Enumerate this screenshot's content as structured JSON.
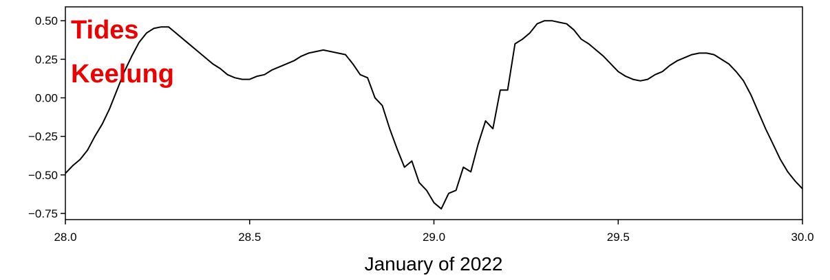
{
  "chart_data": {
    "type": "line",
    "title": "",
    "xlabel": "January of 2022",
    "ylabel": "",
    "xlim": [
      28.0,
      30.0
    ],
    "ylim": [
      -0.79,
      0.59
    ],
    "xticks": [
      28.0,
      28.5,
      29.0,
      29.5,
      30.0
    ],
    "xtick_labels": [
      "28.0",
      "28.5",
      "29.0",
      "29.5",
      "30.0"
    ],
    "yticks": [
      0.5,
      0.25,
      0.0,
      -0.25,
      -0.5,
      -0.75
    ],
    "ytick_labels": [
      "0.50",
      "0.25",
      "0.00",
      "−0.25",
      "−0.50",
      "−0.75"
    ],
    "grid": false,
    "annotation": {
      "lines": [
        "Tides",
        "Keelung"
      ],
      "color": "#ee0000"
    },
    "line_color": "#000000",
    "series": [
      {
        "x": [
          28.0,
          28.02,
          28.04,
          28.06,
          28.08,
          28.1,
          28.12,
          28.14,
          28.16,
          28.18,
          28.2,
          28.22,
          28.24,
          28.26,
          28.28,
          28.3,
          28.32,
          28.34,
          28.36,
          28.38,
          28.4,
          28.42,
          28.44,
          28.46,
          28.48,
          28.5,
          28.52,
          28.54,
          28.56,
          28.58,
          28.6,
          28.62,
          28.64,
          28.66,
          28.68,
          28.7,
          28.72,
          28.74,
          28.76,
          28.78,
          28.8,
          28.82,
          28.84,
          28.86,
          28.88,
          28.9,
          28.92,
          28.94,
          28.96,
          28.98,
          29.0,
          29.02,
          29.04,
          29.06,
          29.08,
          29.1,
          29.12,
          29.14,
          29.16,
          29.18,
          29.2,
          29.22,
          29.24,
          29.26,
          29.28,
          29.3,
          29.32,
          29.34,
          29.36,
          29.38,
          29.4,
          29.42,
          29.44,
          29.46,
          29.48,
          29.5,
          29.52,
          29.54,
          29.56,
          29.58,
          29.6,
          29.62,
          29.64,
          29.66,
          29.68,
          29.7,
          29.72,
          29.74,
          29.76,
          29.78,
          29.8,
          29.82,
          29.84,
          29.86,
          29.88,
          29.9,
          29.92,
          29.94,
          29.96,
          29.98,
          30.0
        ],
        "y": [
          -0.49,
          -0.44,
          -0.4,
          -0.34,
          -0.25,
          -0.17,
          -0.07,
          0.05,
          0.17,
          0.27,
          0.36,
          0.42,
          0.45,
          0.46,
          0.46,
          0.42,
          0.38,
          0.34,
          0.3,
          0.26,
          0.22,
          0.19,
          0.15,
          0.13,
          0.12,
          0.12,
          0.14,
          0.15,
          0.18,
          0.2,
          0.22,
          0.24,
          0.27,
          0.29,
          0.3,
          0.31,
          0.3,
          0.29,
          0.28,
          0.22,
          0.15,
          0.13,
          0.0,
          -0.05,
          -0.2,
          -0.33,
          -0.45,
          -0.41,
          -0.55,
          -0.6,
          -0.68,
          -0.72,
          -0.62,
          -0.6,
          -0.45,
          -0.48,
          -0.3,
          -0.15,
          -0.2,
          0.05,
          0.05,
          0.35,
          0.38,
          0.42,
          0.48,
          0.5,
          0.5,
          0.49,
          0.48,
          0.44,
          0.38,
          0.35,
          0.31,
          0.27,
          0.22,
          0.17,
          0.14,
          0.12,
          0.11,
          0.12,
          0.15,
          0.17,
          0.21,
          0.24,
          0.26,
          0.28,
          0.29,
          0.29,
          0.28,
          0.25,
          0.22,
          0.17,
          0.11,
          0.02,
          -0.09,
          -0.2,
          -0.3,
          -0.4,
          -0.48,
          -0.54,
          -0.59
        ]
      }
    ]
  }
}
